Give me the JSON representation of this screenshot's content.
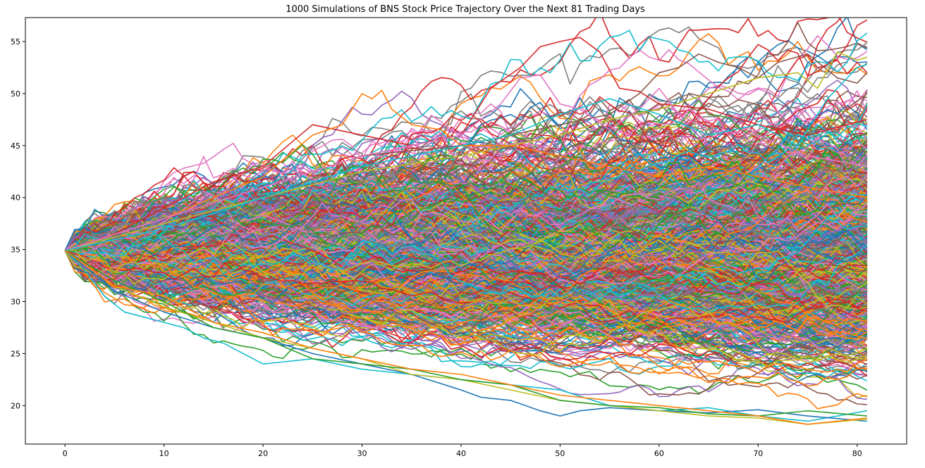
{
  "chart_data": {
    "type": "line",
    "title": "1000 Simulations of BNS Stock Price Trajectory Over the Next 81 Trading Days",
    "xlabel": "",
    "ylabel": "",
    "xlim": [
      -4,
      85
    ],
    "ylim": [
      16.3,
      57.3
    ],
    "x_ticks": [
      0,
      10,
      20,
      30,
      40,
      50,
      60,
      70,
      80
    ],
    "y_ticks": [
      20,
      25,
      30,
      35,
      40,
      45,
      50,
      55
    ],
    "grid": false,
    "legend": "none",
    "n_simulations": 1000,
    "n_days": 81,
    "start_price": 34.9,
    "palette": [
      "#1f77b4",
      "#ff7f0e",
      "#2ca02c",
      "#d62728",
      "#9467bd",
      "#8c564b",
      "#e377c2",
      "#7f7f7f",
      "#bcbd22",
      "#17becf"
    ],
    "highlighted_paths": [
      {
        "name": "",
        "color": "#d62728",
        "x": [
          0,
          5,
          10,
          15,
          20,
          25,
          30,
          35,
          40,
          43,
          46,
          48,
          50,
          52,
          54,
          56,
          58,
          60,
          65,
          70,
          75,
          81
        ],
        "y": [
          34.9,
          36.5,
          39.0,
          41.5,
          43.0,
          47.0,
          46.0,
          45.0,
          46.0,
          50.5,
          52.5,
          54.5,
          55.0,
          55.4,
          54.0,
          50.5,
          50.2,
          49.0,
          48.5,
          47.0,
          46.0,
          47.5
        ]
      },
      {
        "name": "",
        "color": "#8c564b",
        "x": [
          0,
          10,
          20,
          30,
          40,
          50,
          55,
          58,
          60,
          62,
          64,
          66,
          68,
          70,
          72,
          75,
          78,
          80,
          81
        ],
        "y": [
          34.9,
          38.0,
          41.0,
          44.0,
          45.0,
          47.0,
          48.0,
          50.0,
          52.0,
          52.5,
          53.8,
          53.0,
          52.5,
          51.5,
          53.0,
          53.8,
          51.5,
          51.0,
          52.0
        ]
      },
      {
        "name": "",
        "color": "#bcbd22",
        "x": [
          0,
          10,
          20,
          30,
          40,
          50,
          55,
          60,
          65,
          70,
          74,
          76,
          78,
          80,
          81
        ],
        "y": [
          34.9,
          37.5,
          40.0,
          42.5,
          44.0,
          46.0,
          47.5,
          48.5,
          50.0,
          51.5,
          52.0,
          50.5,
          54.0,
          53.2,
          53.5
        ]
      },
      {
        "name": "",
        "color": "#ff7f0e",
        "x": [
          0,
          10,
          20,
          25,
          28,
          30,
          31,
          32,
          33,
          35,
          38,
          40,
          45,
          50,
          55,
          60,
          65,
          70,
          75,
          81
        ],
        "y": [
          34.9,
          38.0,
          42.0,
          46.0,
          47.0,
          50.0,
          49.5,
          50.3,
          48.5,
          47.0,
          46.5,
          45.0,
          45.0,
          44.0,
          43.0,
          42.0,
          43.0,
          42.0,
          41.0,
          40.0
        ]
      },
      {
        "name": "",
        "color": "#e377c2",
        "x": [
          0,
          10,
          20,
          30,
          40,
          44,
          46,
          48,
          50,
          52,
          55,
          58,
          60,
          62,
          65,
          70,
          75,
          81
        ],
        "y": [
          34.9,
          38.0,
          41.0,
          44.0,
          46.0,
          49.0,
          51.5,
          51.8,
          49.0,
          48.5,
          46.5,
          48.5,
          50.5,
          48.0,
          46.5,
          46.0,
          44.0,
          43.0
        ]
      },
      {
        "name": "",
        "color": "#17becf",
        "x": [
          0,
          10,
          20,
          30,
          40,
          45,
          50,
          55,
          60,
          65,
          70,
          74,
          77,
          80,
          81
        ],
        "y": [
          34.9,
          37.0,
          40.0,
          43.0,
          45.0,
          46.0,
          48.0,
          49.5,
          48.0,
          46.0,
          47.0,
          45.0,
          49.5,
          52.5,
          52.8
        ]
      },
      {
        "name": "",
        "color": "#17becf",
        "x": [
          0,
          2,
          4,
          6,
          8,
          10,
          12,
          14,
          16,
          18,
          20,
          25,
          30,
          35,
          40,
          45,
          50,
          55,
          60,
          65,
          70,
          75,
          81
        ],
        "y": [
          34.9,
          33.0,
          30.5,
          29.0,
          28.5,
          28.0,
          27.5,
          26.5,
          26.0,
          25.0,
          24.0,
          24.5,
          23.5,
          23.0,
          22.5,
          22.0,
          21.5,
          20.0,
          19.5,
          19.8,
          19.0,
          18.5,
          19.5
        ]
      },
      {
        "name": "",
        "color": "#1f77b4",
        "x": [
          0,
          5,
          10,
          15,
          20,
          25,
          30,
          35,
          40,
          42,
          45,
          48,
          50,
          52,
          55,
          60,
          65,
          70,
          75,
          81
        ],
        "y": [
          34.9,
          31.0,
          29.0,
          27.5,
          26.5,
          25.0,
          24.0,
          23.0,
          21.5,
          20.8,
          20.5,
          19.5,
          19.0,
          19.5,
          19.8,
          19.5,
          19.3,
          19.6,
          19.0,
          18.5
        ]
      },
      {
        "name": "",
        "color": "#bcbd22",
        "x": [
          0,
          5,
          10,
          15,
          20,
          25,
          30,
          35,
          40,
          45,
          50,
          55,
          60,
          65,
          70,
          75,
          81
        ],
        "y": [
          34.9,
          31.5,
          29.5,
          28.0,
          26.5,
          25.5,
          24.5,
          23.0,
          22.5,
          21.5,
          20.5,
          20.0,
          19.5,
          19.0,
          18.8,
          18.2,
          18.7
        ]
      },
      {
        "name": "",
        "color": "#2ca02c",
        "x": [
          0,
          5,
          10,
          15,
          20,
          25,
          30,
          35,
          40,
          45,
          50,
          55,
          60,
          65,
          70,
          75,
          81
        ],
        "y": [
          34.9,
          32.0,
          30.0,
          27.5,
          26.5,
          24.5,
          24.0,
          23.5,
          22.5,
          22.0,
          20.5,
          20.0,
          19.8,
          19.2,
          19.0,
          19.5,
          19.0
        ]
      },
      {
        "name": "",
        "color": "#ff7f0e",
        "x": [
          0,
          5,
          10,
          15,
          20,
          25,
          30,
          35,
          40,
          45,
          50,
          55,
          60,
          65,
          70,
          75,
          81
        ],
        "y": [
          34.9,
          31.5,
          30.5,
          28.0,
          27.0,
          25.5,
          24.5,
          23.5,
          23.0,
          22.0,
          21.0,
          20.5,
          20.0,
          19.5,
          19.0,
          18.2,
          18.8
        ]
      }
    ]
  }
}
